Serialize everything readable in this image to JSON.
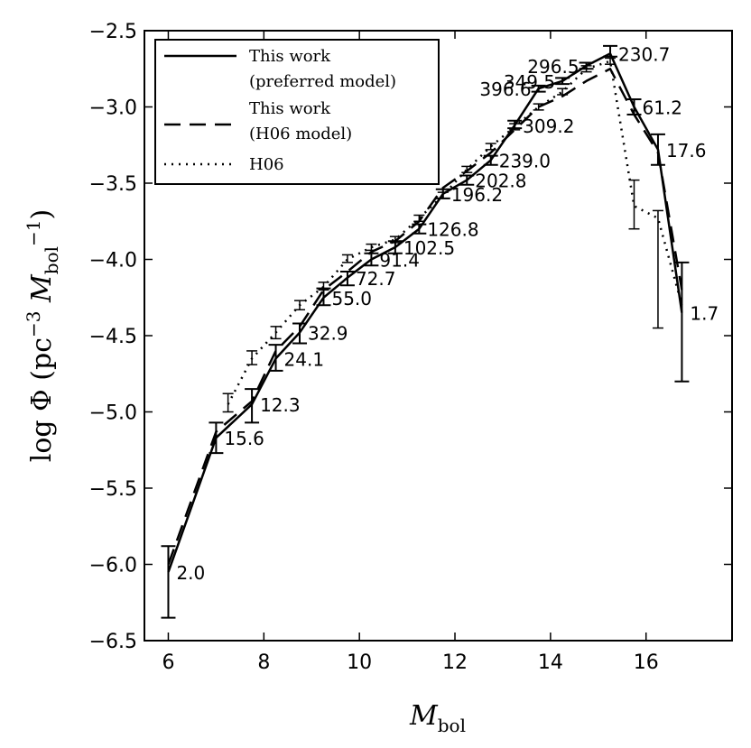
{
  "chart_data": {
    "type": "line",
    "xlabel": "M_bol",
    "ylabel": "log Φ (pc⁻³ M_bol⁻¹)",
    "xlabel_parts": {
      "main": "M",
      "sub": "bol"
    },
    "ylabel_parts": {
      "prefix": "log Φ (pc",
      "sup1": "−3",
      "mid": " M",
      "sub": "bol",
      "sup2": "−1",
      "suffix": ")"
    },
    "xlim": [
      5.5,
      17.8
    ],
    "ylim": [
      -6.5,
      -2.5
    ],
    "xticks": [
      6,
      8,
      10,
      12,
      14,
      16
    ],
    "xtick_labels": [
      "6",
      "8",
      "10",
      "12",
      "14",
      "16"
    ],
    "yticks": [
      -6.5,
      -6.0,
      -5.5,
      -5.0,
      -4.5,
      -4.0,
      -3.5,
      -3.0,
      -2.5
    ],
    "ytick_labels": [
      "−6.5",
      "−6.0",
      "−5.5",
      "−5.0",
      "−4.5",
      "−4.0",
      "−3.5",
      "−3.0",
      "−2.5"
    ],
    "legend_position": "top-left",
    "series": [
      {
        "name": "This work (preferred model)",
        "legend_line1": "This work",
        "legend_line2": "(preferred model)",
        "style": "solid",
        "x": [
          6.0,
          7.0,
          7.75,
          8.25,
          8.75,
          9.25,
          9.75,
          10.25,
          10.75,
          11.25,
          11.75,
          12.25,
          12.75,
          13.25,
          13.75,
          14.25,
          14.75,
          15.25,
          15.75,
          16.25,
          16.75
        ],
        "y": [
          -6.05,
          -5.17,
          -4.95,
          -4.65,
          -4.48,
          -4.25,
          -4.12,
          -4.0,
          -3.92,
          -3.8,
          -3.57,
          -3.48,
          -3.35,
          -3.12,
          -2.88,
          -2.83,
          -2.73,
          -2.65,
          -3.0,
          -3.28,
          -4.35
        ]
      },
      {
        "name": "This work (H06 model)",
        "legend_line1": "This work",
        "legend_line2": "(H06 model)",
        "style": "dashed",
        "x": [
          6.0,
          7.0,
          7.75,
          8.25,
          8.75,
          9.25,
          9.75,
          10.25,
          10.75,
          11.25,
          11.75,
          12.25,
          12.75,
          13.25,
          13.75,
          14.25,
          14.75,
          15.25,
          15.75,
          16.25,
          16.75
        ],
        "y": [
          -6.0,
          -5.13,
          -4.93,
          -4.6,
          -4.44,
          -4.2,
          -4.08,
          -3.95,
          -3.88,
          -3.75,
          -3.53,
          -3.42,
          -3.3,
          -3.15,
          -3.0,
          -2.93,
          -2.83,
          -2.75,
          -3.05,
          -3.3,
          -4.2
        ]
      },
      {
        "name": "H06",
        "legend_line1": "H06",
        "style": "dotted",
        "x": [
          7.25,
          7.75,
          8.25,
          8.75,
          9.25,
          9.75,
          10.25,
          10.75,
          11.25,
          11.75,
          12.25,
          12.75,
          13.25,
          13.75,
          14.25,
          14.75,
          15.25,
          15.75,
          16.25,
          16.75
        ],
        "y": [
          -4.95,
          -4.65,
          -4.48,
          -4.3,
          -4.18,
          -4.0,
          -3.92,
          -3.87,
          -3.73,
          -3.58,
          -3.41,
          -3.26,
          -3.13,
          -3.0,
          -2.9,
          -2.75,
          -2.7,
          -3.65,
          -3.73,
          -4.3
        ]
      }
    ],
    "error_bars": [
      {
        "x": 6.0,
        "y": -6.05,
        "lo": -6.35,
        "hi": -5.88
      },
      {
        "x": 7.0,
        "y": -5.17,
        "lo": -5.27,
        "hi": -5.07
      },
      {
        "x": 7.75,
        "y": -4.95,
        "lo": -5.07,
        "hi": -4.85
      },
      {
        "x": 8.25,
        "y": -4.65,
        "lo": -4.73,
        "hi": -4.56
      },
      {
        "x": 8.75,
        "y": -4.48,
        "lo": -4.55,
        "hi": -4.42
      },
      {
        "x": 9.25,
        "y": -4.25,
        "lo": -4.3,
        "hi": -4.19
      },
      {
        "x": 9.75,
        "y": -4.12,
        "lo": -4.17,
        "hi": -4.08
      },
      {
        "x": 10.25,
        "y": -4.0,
        "lo": -4.04,
        "hi": -3.96
      },
      {
        "x": 10.75,
        "y": -3.92,
        "lo": -3.96,
        "hi": -3.88
      },
      {
        "x": 11.25,
        "y": -3.8,
        "lo": -3.83,
        "hi": -3.77
      },
      {
        "x": 11.75,
        "y": -3.57,
        "lo": -3.6,
        "hi": -3.54
      },
      {
        "x": 12.25,
        "y": -3.48,
        "lo": -3.51,
        "hi": -3.45
      },
      {
        "x": 12.75,
        "y": -3.35,
        "lo": -3.38,
        "hi": -3.32
      },
      {
        "x": 13.25,
        "y": -3.12,
        "lo": -3.14,
        "hi": -3.09
      },
      {
        "x": 13.75,
        "y": -2.88,
        "lo": -2.9,
        "hi": -2.86
      },
      {
        "x": 14.25,
        "y": -2.83,
        "lo": -2.85,
        "hi": -2.81
      },
      {
        "x": 14.75,
        "y": -2.73,
        "lo": -2.75,
        "hi": -2.71
      },
      {
        "x": 15.25,
        "y": -2.65,
        "lo": -2.67,
        "hi": -2.6
      },
      {
        "x": 15.75,
        "y": -3.0,
        "lo": -3.05,
        "hi": -2.95
      },
      {
        "x": 16.25,
        "y": -3.28,
        "lo": -3.38,
        "hi": -3.18
      },
      {
        "x": 16.75,
        "y": -4.35,
        "lo": -4.8,
        "hi": -4.02
      }
    ],
    "h06_error_bars": [
      {
        "x": 7.25,
        "y": -4.95,
        "lo": -5.0,
        "hi": -4.88
      },
      {
        "x": 7.75,
        "y": -4.65,
        "lo": -4.69,
        "hi": -4.6
      },
      {
        "x": 8.25,
        "y": -4.48,
        "lo": -4.52,
        "hi": -4.44
      },
      {
        "x": 8.75,
        "y": -4.3,
        "lo": -4.33,
        "hi": -4.27
      },
      {
        "x": 9.25,
        "y": -4.18,
        "lo": -4.2,
        "hi": -4.15
      },
      {
        "x": 9.75,
        "y": -4.0,
        "lo": -4.02,
        "hi": -3.97
      },
      {
        "x": 10.25,
        "y": -3.92,
        "lo": -3.94,
        "hi": -3.9
      },
      {
        "x": 10.75,
        "y": -3.87,
        "lo": -3.89,
        "hi": -3.85
      },
      {
        "x": 11.25,
        "y": -3.73,
        "lo": -3.75,
        "hi": -3.71
      },
      {
        "x": 11.75,
        "y": -3.58,
        "lo": -3.6,
        "hi": -3.56
      },
      {
        "x": 12.25,
        "y": -3.41,
        "lo": -3.43,
        "hi": -3.39
      },
      {
        "x": 12.75,
        "y": -3.26,
        "lo": -3.28,
        "hi": -3.24
      },
      {
        "x": 13.25,
        "y": -3.13,
        "lo": -3.15,
        "hi": -3.11
      },
      {
        "x": 13.75,
        "y": -3.0,
        "lo": -3.02,
        "hi": -2.98
      },
      {
        "x": 14.25,
        "y": -2.9,
        "lo": -2.92,
        "hi": -2.88
      },
      {
        "x": 14.75,
        "y": -2.75,
        "lo": -2.77,
        "hi": -2.73
      },
      {
        "x": 15.25,
        "y": -2.7,
        "lo": -2.72,
        "hi": -2.68
      },
      {
        "x": 15.75,
        "y": -3.65,
        "lo": -3.8,
        "hi": -3.48
      },
      {
        "x": 16.25,
        "y": -3.73,
        "lo": -4.45,
        "hi": -3.68
      }
    ],
    "point_labels": [
      {
        "x": 6.0,
        "y": -6.05,
        "text": "2.0",
        "side": "right"
      },
      {
        "x": 7.0,
        "y": -5.17,
        "text": "15.6",
        "side": "right"
      },
      {
        "x": 7.75,
        "y": -4.95,
        "text": "12.3",
        "side": "right"
      },
      {
        "x": 8.25,
        "y": -4.65,
        "text": "24.1",
        "side": "right"
      },
      {
        "x": 8.75,
        "y": -4.48,
        "text": "32.9",
        "side": "right"
      },
      {
        "x": 9.25,
        "y": -4.25,
        "text": "55.0",
        "side": "right"
      },
      {
        "x": 9.75,
        "y": -4.12,
        "text": "72.7",
        "side": "right"
      },
      {
        "x": 10.25,
        "y": -4.0,
        "text": "91.4",
        "side": "right"
      },
      {
        "x": 10.75,
        "y": -3.92,
        "text": "102.5",
        "side": "right"
      },
      {
        "x": 11.25,
        "y": -3.8,
        "text": "126.8",
        "side": "right"
      },
      {
        "x": 11.75,
        "y": -3.57,
        "text": "196.2",
        "side": "right"
      },
      {
        "x": 12.25,
        "y": -3.48,
        "text": "202.8",
        "side": "right"
      },
      {
        "x": 12.75,
        "y": -3.35,
        "text": "239.0",
        "side": "right"
      },
      {
        "x": 13.25,
        "y": -3.12,
        "text": "309.2",
        "side": "right"
      },
      {
        "x": 13.75,
        "y": -2.88,
        "text": "396.6",
        "side": "left"
      },
      {
        "x": 14.25,
        "y": -2.83,
        "text": "349.5",
        "side": "left"
      },
      {
        "x": 14.75,
        "y": -2.73,
        "text": "296.5",
        "side": "left"
      },
      {
        "x": 15.25,
        "y": -2.65,
        "text": "230.7",
        "side": "right"
      },
      {
        "x": 15.75,
        "y": -3.0,
        "text": "61.2",
        "side": "right"
      },
      {
        "x": 16.25,
        "y": -3.28,
        "text": "17.6",
        "side": "right"
      },
      {
        "x": 16.75,
        "y": -4.35,
        "text": "1.7",
        "side": "right"
      }
    ]
  }
}
